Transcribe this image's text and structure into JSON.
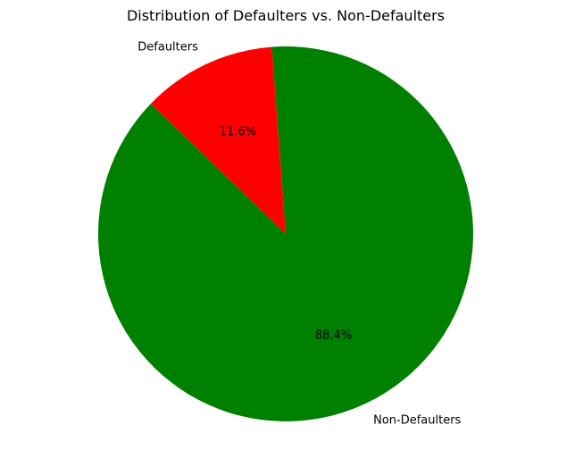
{
  "chart_data": {
    "type": "pie",
    "title": "Distribution of Defaulters vs. Non-Defaulters",
    "categories": [
      "Non-Defaulters",
      "Defaulters"
    ],
    "values": [
      88.4,
      11.6
    ],
    "value_labels": [
      "88.4%",
      "11.6%"
    ],
    "colors": [
      "#008000",
      "#ff0000"
    ],
    "start_angle_deg": 136,
    "direction": "counterclockwise",
    "legend": "none"
  }
}
